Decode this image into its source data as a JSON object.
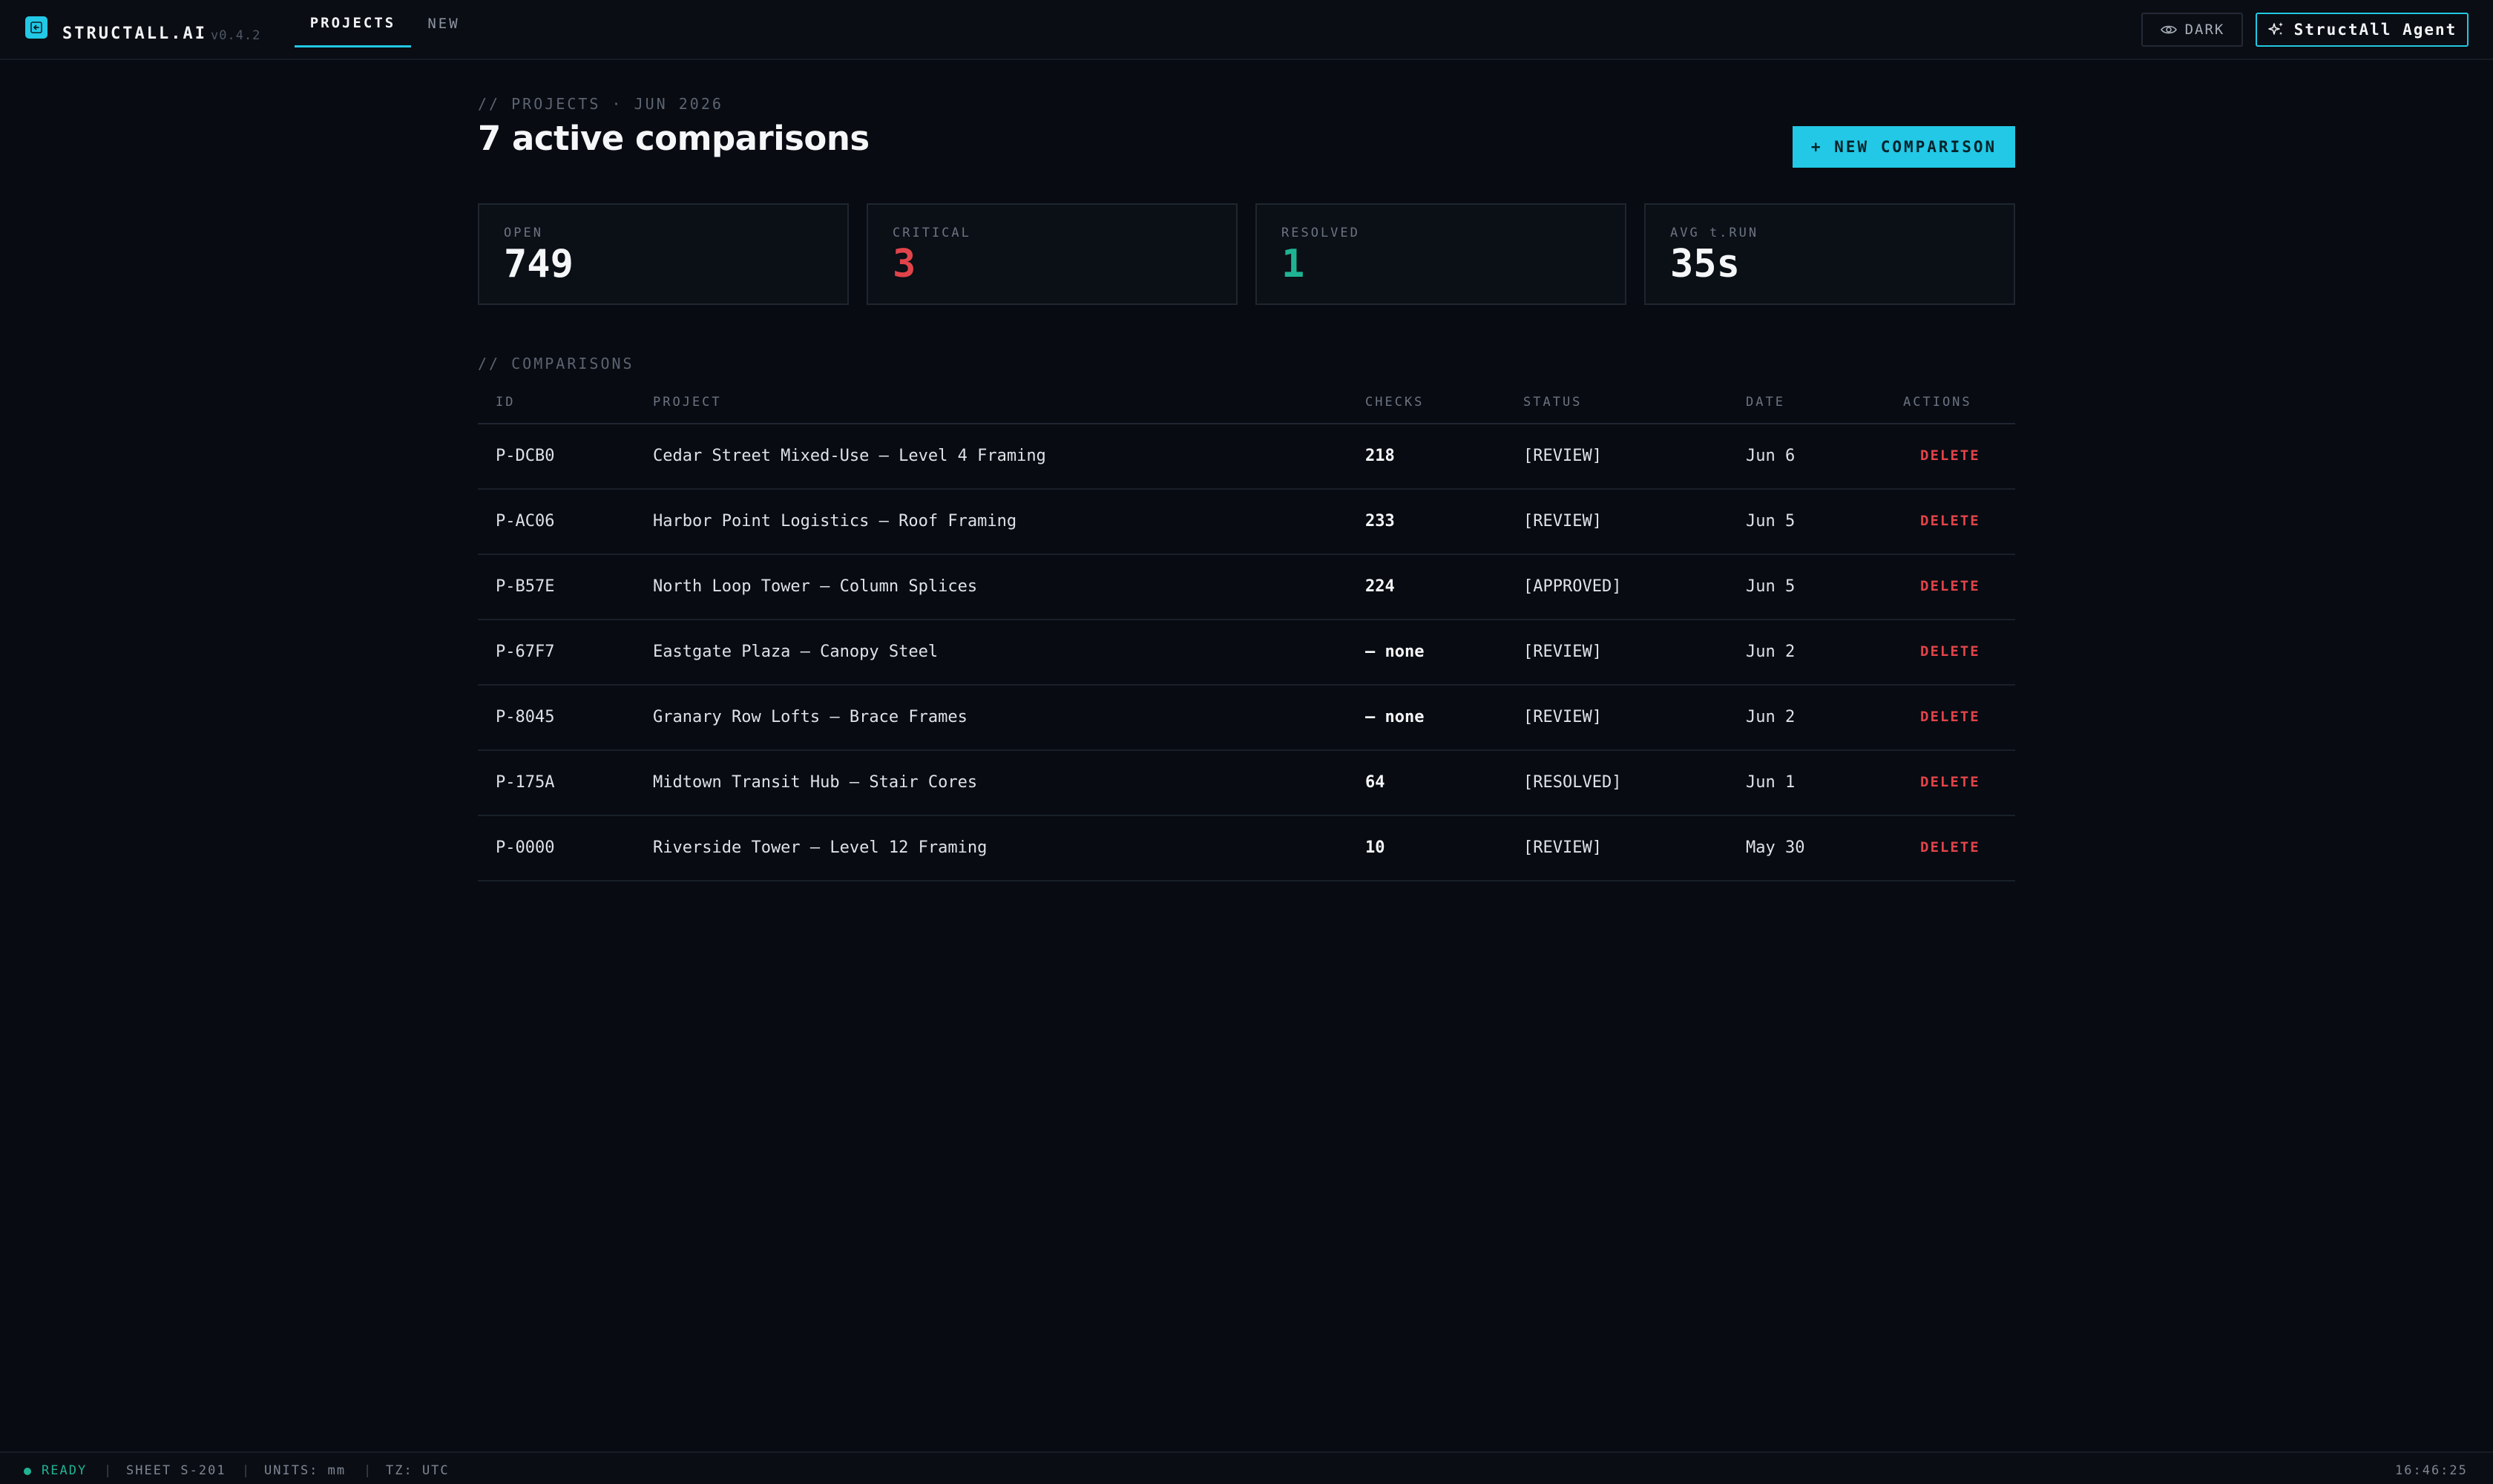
{
  "app": {
    "brand": "STRUCTALL.AI",
    "version": "v0.4.2"
  },
  "nav": {
    "tabs": [
      {
        "label": "PROJECTS",
        "active": true
      },
      {
        "label": "NEW",
        "active": false
      }
    ]
  },
  "header_actions": {
    "theme_label": "DARK",
    "agent_label": "StructAll Agent"
  },
  "page": {
    "eyebrow": "// PROJECTS · JUN 2026",
    "title": "7 active comparisons",
    "new_button_label": "+ NEW COMPARISON"
  },
  "stats": [
    {
      "label": "OPEN",
      "value": "749"
    },
    {
      "label": "CRITICAL",
      "value": "3"
    },
    {
      "label": "RESOLVED",
      "value": "1"
    },
    {
      "label": "AVG t.RUN",
      "value": "35s"
    }
  ],
  "comparisons": {
    "section_label": "// COMPARISONS",
    "columns": [
      "ID",
      "PROJECT",
      "CHECKS",
      "STATUS",
      "DATE",
      "ACTIONS"
    ],
    "rows": [
      {
        "id": "P-DCB0",
        "project": "Cedar Street Mixed-Use — Level 4 Framing",
        "checks": "218",
        "status": "[REVIEW]",
        "date": "Jun 6",
        "action": "DELETE"
      },
      {
        "id": "P-AC06",
        "project": "Harbor Point Logistics — Roof Framing",
        "checks": "233",
        "status": "[REVIEW]",
        "date": "Jun 5",
        "action": "DELETE"
      },
      {
        "id": "P-B57E",
        "project": "North Loop Tower — Column Splices",
        "checks": "224",
        "status": "[APPROVED]",
        "date": "Jun 5",
        "action": "DELETE"
      },
      {
        "id": "P-67F7",
        "project": "Eastgate Plaza — Canopy Steel",
        "checks": "— none",
        "status": "[REVIEW]",
        "date": "Jun 2",
        "action": "DELETE"
      },
      {
        "id": "P-8045",
        "project": "Granary Row Lofts — Brace Frames",
        "checks": "— none",
        "status": "[REVIEW]",
        "date": "Jun 2",
        "action": "DELETE"
      },
      {
        "id": "P-175A",
        "project": "Midtown Transit Hub — Stair Cores",
        "checks": "64",
        "status": "[RESOLVED]",
        "date": "Jun 1",
        "action": "DELETE"
      },
      {
        "id": "P-0000",
        "project": "Riverside Tower — Level 12 Framing",
        "checks": "10",
        "status": "[REVIEW]",
        "date": "May 30",
        "action": "DELETE"
      }
    ]
  },
  "statusbar": {
    "ready": "READY",
    "separator": "|",
    "sheet": "SHEET S-201",
    "units": "UNITS: mm",
    "tz": "TZ: UTC",
    "clock": "16:46:25"
  },
  "colors": {
    "accent": "#22c8e5",
    "danger": "#e0444a",
    "success": "#1fb394",
    "background": "#080b11"
  }
}
